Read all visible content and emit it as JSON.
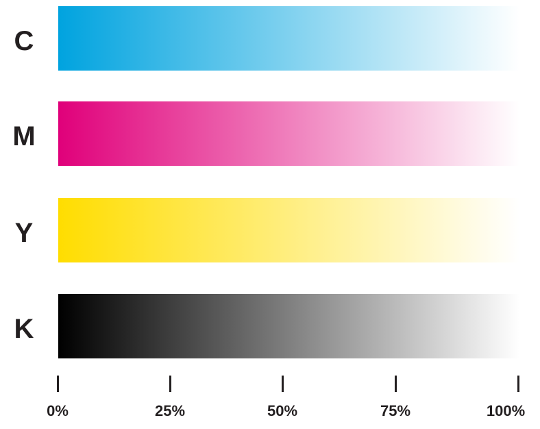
{
  "ramps": [
    {
      "label": "C",
      "color": "#00a3df"
    },
    {
      "label": "M",
      "color": "#e0007a"
    },
    {
      "label": "Y",
      "color": "#ffdd00"
    },
    {
      "label": "K",
      "color": "#000000"
    }
  ],
  "scale": {
    "ticks": [
      "0%",
      "25%",
      "50%",
      "75%",
      "100%"
    ]
  }
}
